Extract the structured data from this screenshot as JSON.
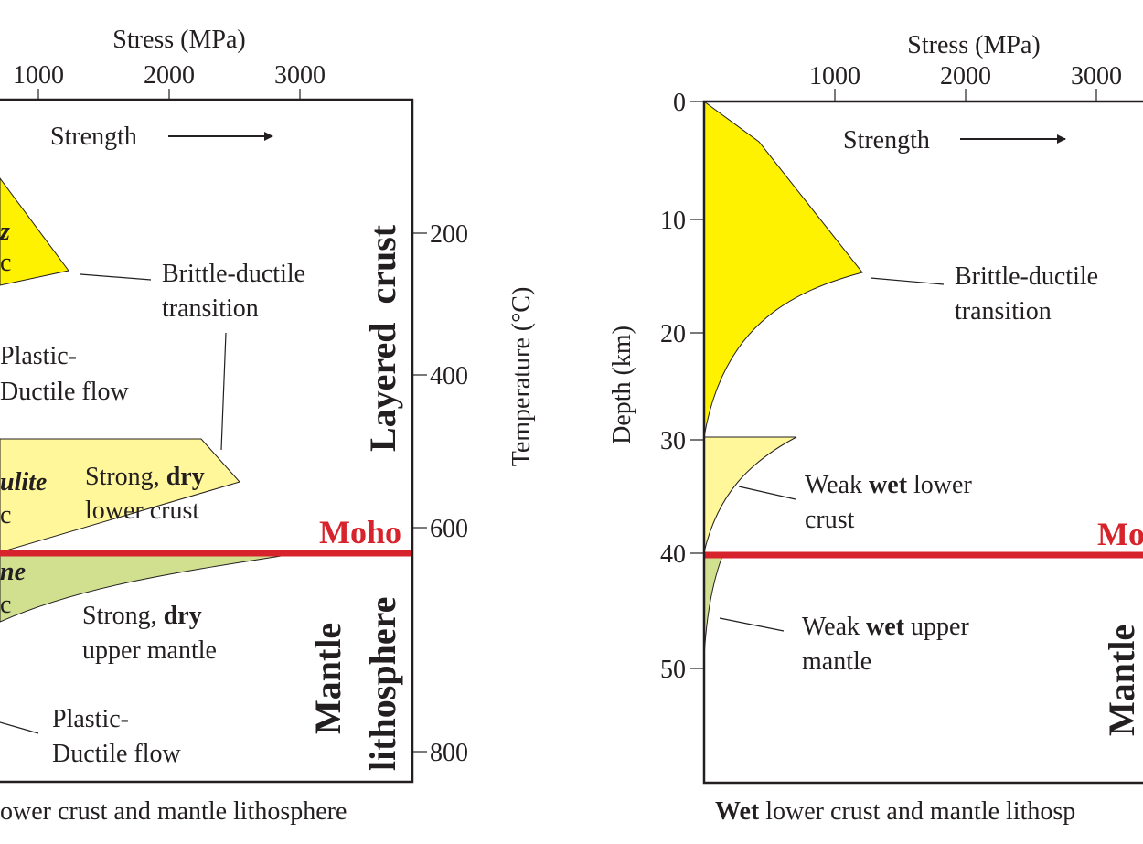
{
  "left_panel": {
    "stress_title": "Stress (MPa)",
    "stress_ticks": [
      "1000",
      "2000",
      "3000"
    ],
    "strength_label": "Strength",
    "quartz_fragment_1": "z",
    "quartz_fragment_2": "c",
    "bd_line1": "Brittle-ductile",
    "bd_line2": "transition",
    "pd1_line1": "Plastic-",
    "pd1_line2": "Ductile flow",
    "granulite_fragment_1": "ulite",
    "granulite_fragment_2": "c",
    "strong_crust_prefix": "Strong, ",
    "strong_crust_bold": "dry",
    "strong_crust_line2": "lower crust",
    "moho": "Moho",
    "olivine_fragment_1": "ne",
    "olivine_fragment_2": "c",
    "strong_mantle_prefix": "Strong, ",
    "strong_mantle_bold": "dry",
    "strong_mantle_line2": "upper mantle",
    "pd2_line1": "Plastic-",
    "pd2_line2": "Ductile flow",
    "layered_crust": "Layered  crust",
    "mantle_word": "Mantle",
    "lithosphere_word": "lithosphere",
    "temp_title": "Temperature (°C)",
    "temp_ticks": [
      "200",
      "400",
      "600",
      "800"
    ],
    "caption": "ower crust and mantle lithosphere"
  },
  "right_panel": {
    "stress_title": "Stress (MPa)",
    "stress_ticks": [
      "1000",
      "2000",
      "3000"
    ],
    "strength_label": "Strength",
    "depth_title": "Depth (km)",
    "depth_ticks": [
      "0",
      "10",
      "20",
      "30",
      "40",
      "50"
    ],
    "bd_line1": "Brittle-ductile",
    "bd_line2": "transition",
    "weak_crust_prefix": "Weak ",
    "weak_crust_bold": "wet",
    "weak_crust_suffix": " lower",
    "weak_crust_line2": "crust",
    "weak_mantle_prefix": "Weak ",
    "weak_mantle_bold": "wet",
    "weak_mantle_suffix": " upper",
    "weak_mantle_line2": "mantle",
    "moho_fragment": "Mo",
    "mantle_fragment": "Mantle",
    "caption_bold": "Wet",
    "caption_rest": " lower crust and mantle lithosp"
  },
  "colors": {
    "upper_crust": "#fff200",
    "lower_crust": "#fff799",
    "mantle": "#d1e08f",
    "moho_line": "#d7242c"
  }
}
